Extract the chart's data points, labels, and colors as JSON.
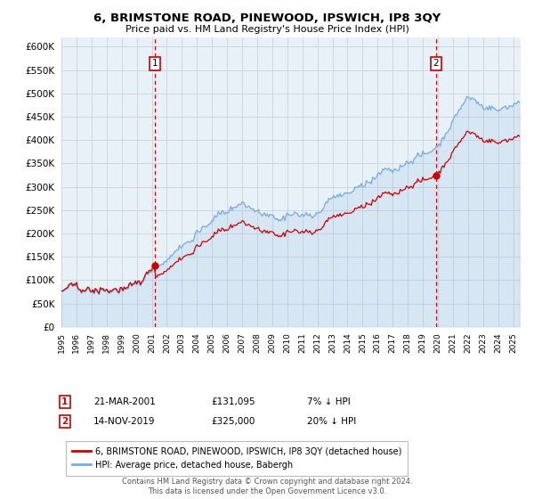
{
  "title": "6, BRIMSTONE ROAD, PINEWOOD, IPSWICH, IP8 3QY",
  "subtitle": "Price paid vs. HM Land Registry's House Price Index (HPI)",
  "legend_line1": "6, BRIMSTONE ROAD, PINEWOOD, IPSWICH, IP8 3QY (detached house)",
  "legend_line2": "HPI: Average price, detached house, Babergh",
  "annotation1_date": "21-MAR-2001",
  "annotation1_price": "£131,095",
  "annotation1_hpi": "7% ↓ HPI",
  "annotation2_date": "14-NOV-2019",
  "annotation2_price": "£325,000",
  "annotation2_hpi": "20% ↓ HPI",
  "footer": "Contains HM Land Registry data © Crown copyright and database right 2024.\nThis data is licensed under the Open Government Licence v3.0.",
  "sale1_year": 2001.22,
  "sale1_price": 131095,
  "sale2_year": 2019.87,
  "sale2_price": 325000,
  "hpi_color": "#7aaddb",
  "price_color": "#cc0000",
  "annotation_color": "#cc0000",
  "background_color": "#ffffff",
  "plot_bg_color": "#e8f0f8",
  "grid_color": "#c8d4e0",
  "ylim_min": 0,
  "ylim_max": 620000,
  "xlim_min": 1995,
  "xlim_max": 2025.5
}
